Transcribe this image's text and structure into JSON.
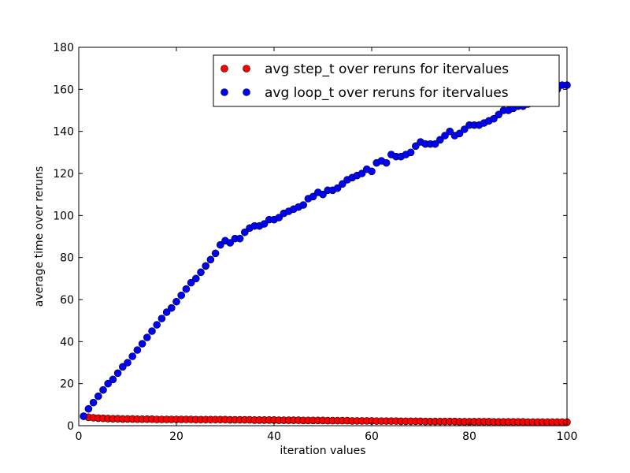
{
  "chart_data": {
    "type": "scatter",
    "title": "",
    "xlabel": "iteration values",
    "ylabel": "average time over reruns",
    "xlim": [
      0,
      100
    ],
    "ylim": [
      0,
      180
    ],
    "xticks": [
      "0",
      "20",
      "40",
      "60",
      "80",
      "100"
    ],
    "yticks": [
      "0",
      "20",
      "40",
      "60",
      "80",
      "100",
      "120",
      "140",
      "160",
      "180"
    ],
    "grid": false,
    "legend_position": "top-right",
    "x": [
      1,
      2,
      3,
      4,
      5,
      6,
      7,
      8,
      9,
      10,
      11,
      12,
      13,
      14,
      15,
      16,
      17,
      18,
      19,
      20,
      21,
      22,
      23,
      24,
      25,
      26,
      27,
      28,
      29,
      30,
      31,
      32,
      33,
      34,
      35,
      36,
      37,
      38,
      39,
      40,
      41,
      42,
      43,
      44,
      45,
      46,
      47,
      48,
      49,
      50,
      51,
      52,
      53,
      54,
      55,
      56,
      57,
      58,
      59,
      60,
      61,
      62,
      63,
      64,
      65,
      66,
      67,
      68,
      69,
      70,
      71,
      72,
      73,
      74,
      75,
      76,
      77,
      78,
      79,
      80,
      81,
      82,
      83,
      84,
      85,
      86,
      87,
      88,
      89,
      90,
      91,
      92,
      93,
      94,
      95,
      96,
      97,
      98,
      99,
      100
    ],
    "series": [
      {
        "name": "avg step_t over reruns for itervalues",
        "color": "#ff0000",
        "values": [
          4.5,
          4.0,
          3.8,
          3.6,
          3.5,
          3.4,
          3.3,
          3.3,
          3.2,
          3.2,
          3.2,
          3.1,
          3.1,
          3.1,
          3.1,
          3.0,
          3.0,
          3.0,
          3.0,
          3.0,
          3.0,
          3.0,
          3.0,
          2.9,
          2.9,
          2.9,
          2.9,
          2.9,
          2.9,
          2.9,
          2.8,
          2.8,
          2.8,
          2.8,
          2.8,
          2.7,
          2.7,
          2.7,
          2.7,
          2.7,
          2.6,
          2.6,
          2.6,
          2.6,
          2.6,
          2.5,
          2.5,
          2.5,
          2.5,
          2.5,
          2.4,
          2.4,
          2.4,
          2.4,
          2.4,
          2.3,
          2.3,
          2.3,
          2.3,
          2.3,
          2.2,
          2.2,
          2.2,
          2.2,
          2.2,
          2.1,
          2.1,
          2.1,
          2.1,
          2.1,
          2.0,
          2.0,
          2.0,
          2.0,
          2.0,
          2.0,
          2.0,
          1.9,
          1.9,
          1.9,
          1.9,
          1.9,
          1.9,
          1.9,
          1.8,
          1.8,
          1.8,
          1.8,
          1.8,
          1.8,
          1.8,
          1.7,
          1.7,
          1.7,
          1.7,
          1.7,
          1.7,
          1.7,
          1.7,
          1.7
        ]
      },
      {
        "name": "avg loop_t over reruns for itervalues",
        "color": "#0000ff",
        "values": [
          4.5,
          8,
          11,
          14,
          17,
          20,
          22,
          25,
          28,
          30,
          33,
          36,
          39,
          42,
          45,
          48,
          51,
          54,
          56,
          59,
          62,
          65,
          68,
          70,
          73,
          76,
          79,
          82,
          86,
          88,
          87,
          89,
          89,
          92,
          94,
          95,
          95,
          96,
          98,
          98,
          99,
          101,
          102,
          103,
          104,
          105,
          108,
          109,
          111,
          110,
          112,
          112,
          113,
          115,
          117,
          118,
          119,
          120,
          122,
          121,
          125,
          126,
          125,
          129,
          128,
          128,
          129,
          130,
          133,
          135,
          134,
          134,
          134,
          136,
          138,
          140,
          138,
          139,
          141,
          143,
          143,
          143,
          144,
          145,
          146,
          148,
          150,
          150,
          151,
          152,
          152,
          153,
          155,
          156,
          157,
          158,
          159,
          160,
          162,
          162
        ]
      }
    ]
  }
}
